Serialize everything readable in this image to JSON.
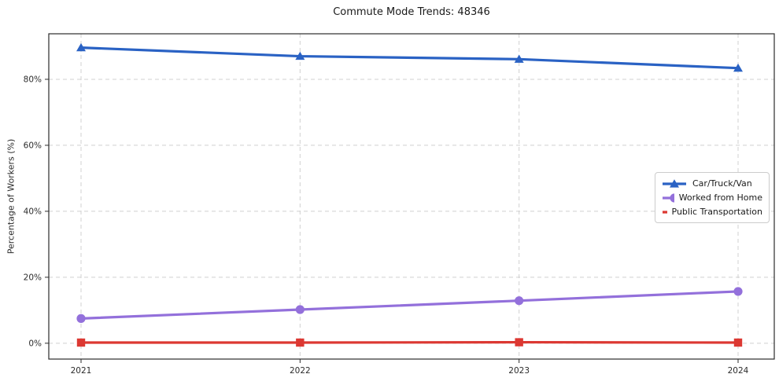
{
  "chart_data": {
    "type": "line",
    "title": "Commute Mode Trends: 48346",
    "xlabel": "",
    "ylabel": "Percentage of Workers (%)",
    "categories": [
      "2021",
      "2022",
      "2023",
      "2024"
    ],
    "ytick_labels": [
      "0%",
      "20%",
      "40%",
      "60%",
      "80%"
    ],
    "ytick_values": [
      0,
      20,
      40,
      60,
      80
    ],
    "ylim": [
      -4.8,
      93.8
    ],
    "grid": true,
    "grid_style": "dashed",
    "legend_position": "center-right",
    "series": [
      {
        "name": "Car/Truck/Van",
        "marker": "triangle",
        "color": "#2a62c4",
        "values": [
          89.6,
          87.0,
          86.1,
          83.4
        ]
      },
      {
        "name": "Worked from Home",
        "marker": "circle",
        "color": "#9370db",
        "values": [
          7.5,
          10.2,
          12.9,
          15.7
        ]
      },
      {
        "name": "Public Transportation",
        "marker": "square",
        "color": "#dc3832",
        "values": [
          0.2,
          0.2,
          0.3,
          0.2
        ]
      }
    ]
  }
}
